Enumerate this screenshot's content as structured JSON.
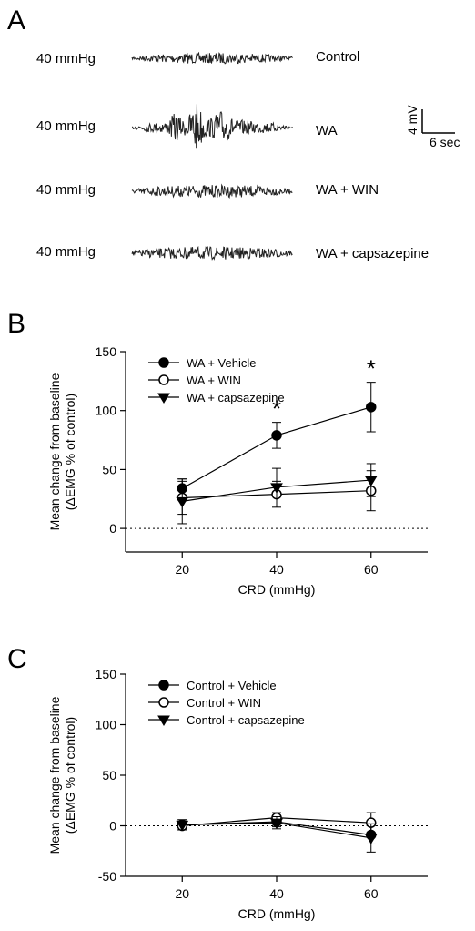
{
  "panels": {
    "a": "A",
    "b": "B",
    "c": "C"
  },
  "traces": [
    {
      "pressure": "40 mmHg",
      "condition": "Control"
    },
    {
      "pressure": "40 mmHg",
      "condition": "WA"
    },
    {
      "pressure": "40 mmHg",
      "condition": "WA + WIN"
    },
    {
      "pressure": "40 mmHg",
      "condition": "WA + capsazepine"
    }
  ],
  "scale_bar": {
    "vertical": "4 mV",
    "horizontal": "6 sec"
  },
  "chart_data": [
    {
      "type": "line",
      "panel": "B",
      "xlabel": "CRD (mmHg)",
      "ylabel": [
        "Mean change from baseline",
        "(ΔEMG % of control)"
      ],
      "x": [
        20,
        40,
        60
      ],
      "xlim": [
        8,
        72
      ],
      "ylim": [
        -20,
        150
      ],
      "yticks": [
        0,
        50,
        100,
        150
      ],
      "reference_line": 0,
      "legend_position": "top-left",
      "significance_marks": [
        {
          "x": 40,
          "label": "*"
        },
        {
          "x": 60,
          "label": "*"
        }
      ],
      "series": [
        {
          "name": "WA + Vehicle",
          "marker": "filled-circle",
          "values": [
            34,
            79,
            103
          ],
          "errors": [
            8,
            11,
            21
          ]
        },
        {
          "name": "WA + WIN",
          "marker": "open-circle",
          "values": [
            26,
            29,
            32
          ],
          "errors": [
            14,
            11,
            17
          ]
        },
        {
          "name": "WA + capsazepine",
          "marker": "filled-triangle-down",
          "values": [
            23,
            35,
            41
          ],
          "errors": [
            19,
            16,
            14
          ]
        }
      ]
    },
    {
      "type": "line",
      "panel": "C",
      "xlabel": "CRD (mmHg)",
      "ylabel": [
        "Mean change from baseline",
        "(ΔEMG % of control)"
      ],
      "x": [
        20,
        40,
        60
      ],
      "xlim": [
        8,
        72
      ],
      "ylim": [
        -50,
        150
      ],
      "yticks": [
        -50,
        0,
        50,
        100,
        150
      ],
      "reference_line": 0,
      "legend_position": "top-left",
      "significance_marks": [],
      "series": [
        {
          "name": "Control + Vehicle",
          "marker": "filled-circle",
          "values": [
            1,
            4,
            -9
          ],
          "errors": [
            5,
            5,
            9
          ]
        },
        {
          "name": "Control + WIN",
          "marker": "open-circle",
          "values": [
            0,
            8,
            3
          ],
          "errors": [
            4,
            5,
            10
          ]
        },
        {
          "name": "Control + capsazepine",
          "marker": "filled-triangle-down",
          "values": [
            1,
            3,
            -12
          ],
          "errors": [
            5,
            6,
            14
          ]
        }
      ]
    }
  ]
}
